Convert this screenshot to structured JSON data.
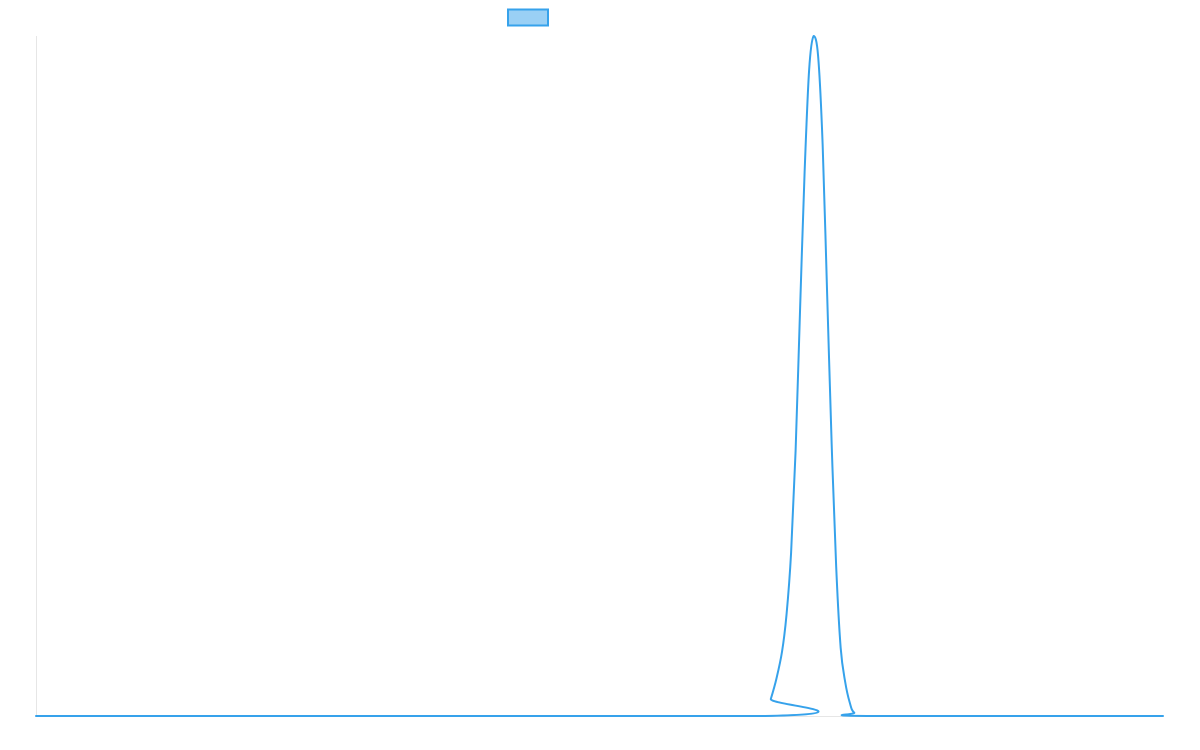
{
  "chart_data": {
    "type": "line",
    "title": "",
    "xlabel": "",
    "ylabel": "",
    "grid": false,
    "legend": {
      "position": "top",
      "entries": [
        {
          "label": "",
          "color": "#36a2eb",
          "fill": "#9ad0f5"
        }
      ]
    },
    "xlim": [
      0,
      1
    ],
    "ylim": [
      0,
      1
    ],
    "series": [
      {
        "color": "#36a2eb",
        "x": [
          0,
          0.647,
          0.652,
          0.657,
          0.662,
          0.666,
          0.67,
          0.674,
          0.678,
          0.682,
          0.686,
          0.69,
          0.694,
          0.698,
          0.702,
          0.706,
          0.71,
          0.714,
          0.718,
          0.722,
          0.726,
          0.737,
          1
        ],
        "y": [
          0,
          0,
          0.025,
          0.055,
          0.095,
          0.15,
          0.24,
          0.39,
          0.6,
          0.8,
          0.95,
          1.0,
          0.97,
          0.84,
          0.62,
          0.4,
          0.22,
          0.1,
          0.05,
          0.02,
          0.005,
          0,
          0
        ]
      }
    ]
  }
}
